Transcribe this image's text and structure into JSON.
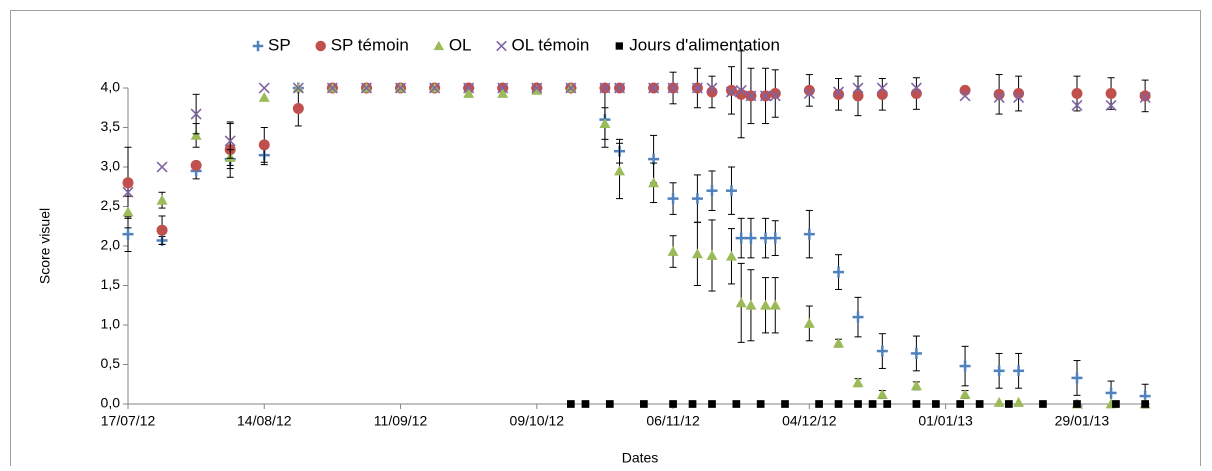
{
  "chart_data": {
    "type": "scatter",
    "xlabel": "Dates",
    "ylabel": "Score visuel",
    "xlim": [
      "17/07/12",
      "12/02/13"
    ],
    "xticks": [
      "17/07/12",
      "14/08/12",
      "11/09/12",
      "09/10/12",
      "06/11/12",
      "04/12/12",
      "01/01/13",
      "29/01/13"
    ],
    "ylim": [
      0,
      4
    ],
    "yticks": [
      {
        "value": 0,
        "label": "0,0"
      },
      {
        "value": 0.5,
        "label": "0,5"
      },
      {
        "value": 1,
        "label": "1,0"
      },
      {
        "value": 1.5,
        "label": "1,5"
      },
      {
        "value": 2,
        "label": "2,0"
      },
      {
        "value": 2.5,
        "label": "2,5"
      },
      {
        "value": 3,
        "label": "3,0"
      },
      {
        "value": 3.5,
        "label": "3,5"
      },
      {
        "value": 4,
        "label": "4,0"
      }
    ],
    "grid": false,
    "legend": "top",
    "x": [
      "17/07/12",
      "24/07/12",
      "31/07/12",
      "07/08/12",
      "14/08/12",
      "21/08/12",
      "28/08/12",
      "04/09/12",
      "11/09/12",
      "18/09/12",
      "25/09/12",
      "02/10/12",
      "09/10/12",
      "16/10/12",
      "23/10/12",
      "26/10/12",
      "02/11/12",
      "06/11/12",
      "11/11/12",
      "14/11/12",
      "18/11/12",
      "20/11/12",
      "22/11/12",
      "25/11/12",
      "27/11/12",
      "04/12/12",
      "10/12/12",
      "14/12/12",
      "19/12/12",
      "26/12/12",
      "05/01/13",
      "12/01/13",
      "16/01/13",
      "28/01/13",
      "04/02/13",
      "11/02/13"
    ],
    "series": [
      {
        "name": "SP",
        "color": "#4f81bd",
        "marker": "plus",
        "values": [
          2.15,
          2.07,
          2.95,
          3.1,
          3.15,
          4.0,
          4.0,
          4.0,
          4.0,
          4.0,
          4.0,
          4.0,
          4.0,
          4.0,
          3.6,
          3.2,
          3.1,
          2.6,
          2.6,
          2.7,
          2.7,
          2.1,
          2.1,
          2.1,
          2.1,
          2.15,
          1.67,
          1.1,
          0.67,
          0.64,
          0.48,
          0.42,
          0.42,
          0.33,
          0.14,
          0.1
        ],
        "errors": [
          0.22,
          0.05,
          0.1,
          0.12,
          0.12,
          null,
          null,
          null,
          null,
          null,
          null,
          null,
          null,
          null,
          0.35,
          0.15,
          0.3,
          0.2,
          0.3,
          0.25,
          0.3,
          0.25,
          0.25,
          0.25,
          0.22,
          0.3,
          0.22,
          0.25,
          0.22,
          0.22,
          0.25,
          0.22,
          0.22,
          0.22,
          0.15,
          0.15
        ]
      },
      {
        "name": "SP témoin",
        "color": "#c0504d",
        "marker": "circle",
        "values": [
          2.8,
          2.2,
          3.02,
          3.22,
          3.28,
          3.74,
          4.0,
          4.0,
          4.0,
          4.0,
          4.0,
          4.0,
          4.0,
          4.0,
          4.0,
          4.0,
          4.0,
          4.0,
          4.0,
          3.95,
          3.97,
          3.92,
          3.9,
          3.9,
          3.93,
          3.97,
          3.92,
          3.9,
          3.92,
          3.93,
          3.97,
          3.92,
          3.93,
          3.93,
          3.93,
          3.9
        ],
        "errors": [
          0.45,
          0.18,
          null,
          0.35,
          0.22,
          0.22,
          null,
          null,
          null,
          null,
          null,
          null,
          null,
          null,
          null,
          null,
          null,
          0.2,
          0.25,
          0.2,
          0.3,
          0.55,
          0.35,
          0.35,
          0.3,
          0.2,
          0.2,
          0.25,
          0.2,
          0.2,
          null,
          0.25,
          0.22,
          0.22,
          0.2,
          0.2
        ]
      },
      {
        "name": "OL",
        "color": "#9bbb59",
        "marker": "triangle",
        "values": [
          2.43,
          2.58,
          3.4,
          3.12,
          3.88,
          4.0,
          4.0,
          4.0,
          4.0,
          4.0,
          3.93,
          3.93,
          3.97,
          4.0,
          3.55,
          2.95,
          2.8,
          1.93,
          1.9,
          1.88,
          1.87,
          1.28,
          1.25,
          1.25,
          1.25,
          1.02,
          0.77,
          0.27,
          0.12,
          0.23,
          0.12,
          0.02,
          0.02,
          0.0,
          0.0,
          0.0
        ],
        "errors": [
          0.2,
          0.1,
          0.15,
          0.1,
          null,
          null,
          null,
          null,
          null,
          null,
          null,
          null,
          null,
          null,
          0.2,
          0.35,
          0.25,
          0.2,
          0.4,
          0.45,
          0.35,
          0.5,
          0.45,
          0.35,
          0.35,
          0.22,
          0.05,
          0.05,
          0.05,
          0.05,
          0.05,
          null,
          null,
          null,
          null,
          null
        ]
      },
      {
        "name": "OL témoin",
        "color": "#8064a2",
        "marker": "cross",
        "values": [
          2.68,
          3.0,
          3.67,
          3.33,
          4.0,
          4.0,
          4.0,
          4.0,
          4.0,
          4.0,
          4.0,
          4.0,
          4.0,
          4.0,
          4.0,
          4.0,
          4.0,
          4.0,
          4.0,
          4.0,
          3.95,
          3.97,
          3.9,
          3.9,
          3.9,
          3.93,
          3.95,
          4.0,
          4.0,
          4.0,
          3.9,
          3.88,
          3.88,
          3.78,
          3.78,
          3.88
        ],
        "errors": [
          null,
          null,
          0.25,
          0.22,
          null,
          null,
          null,
          null,
          null,
          null,
          null,
          null,
          null,
          null,
          null,
          null,
          null,
          null,
          null,
          null,
          null,
          null,
          null,
          null,
          null,
          null,
          null,
          null,
          null,
          null,
          null,
          null,
          null,
          null,
          null,
          null
        ]
      },
      {
        "name": "Jours d'alimentation",
        "color": "#000000",
        "marker": "square",
        "x": [
          "16/10/12",
          "19/10/12",
          "24/10/12",
          "31/10/12",
          "06/11/12",
          "10/11/12",
          "14/11/12",
          "19/11/12",
          "24/11/12",
          "29/11/12",
          "06/12/12",
          "10/12/12",
          "14/12/12",
          "17/12/12",
          "20/12/12",
          "26/12/12",
          "30/12/12",
          "04/01/13",
          "08/01/13",
          "14/01/13",
          "21/01/13",
          "28/01/13",
          "05/02/13",
          "11/02/13"
        ],
        "values": [
          0,
          0,
          0,
          0,
          0,
          0,
          0,
          0,
          0,
          0,
          0,
          0,
          0,
          0,
          0,
          0,
          0,
          0,
          0,
          0,
          0,
          0,
          0,
          0
        ]
      }
    ]
  }
}
